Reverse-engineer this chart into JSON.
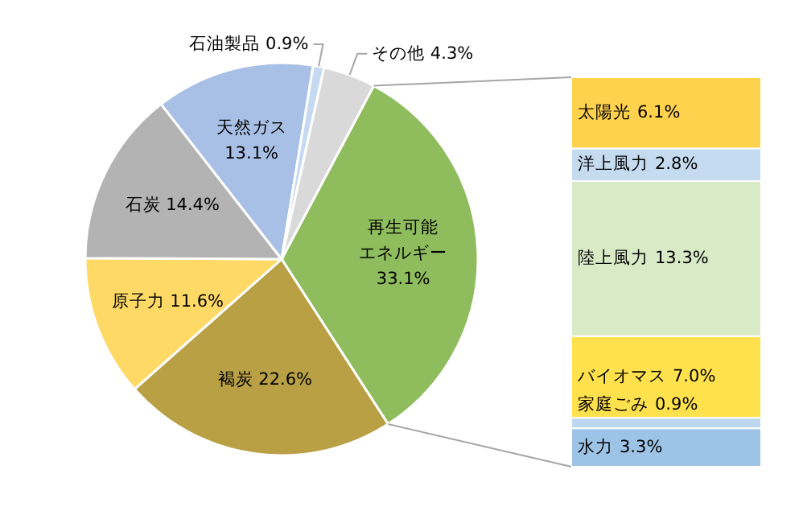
{
  "chart_data": [
    {
      "type": "pie",
      "categories": [
        "再生可能エネルギー",
        "褐炭",
        "原子力",
        "石炭",
        "天然ガス",
        "石油製品",
        "その他"
      ],
      "values": [
        33.1,
        22.6,
        11.6,
        14.4,
        13.1,
        0.9,
        4.3
      ],
      "colors": [
        "#8fbc5c",
        "#b9a045",
        "#ffd966",
        "#b3b3b3",
        "#a9c0e6",
        "#c5d9f0",
        "#d9d9d9"
      ],
      "value_labels": [
        "33.1%",
        "22.6%",
        "11.6%",
        "14.4%",
        "13.1%",
        "0.9%",
        "4.3%"
      ]
    },
    {
      "type": "bar",
      "stacked": true,
      "categories": [
        null
      ],
      "series": [
        {
          "name": "水力",
          "color": "#9dc3e6",
          "values": [
            3.3
          ],
          "value_labels": [
            "3.3%"
          ]
        },
        {
          "name": "家庭ごみ",
          "color": "#bdd7ee",
          "values": [
            0.9
          ],
          "value_labels": [
            "0.9%"
          ]
        },
        {
          "name": "バイオマス",
          "color": "#ffe14d",
          "values": [
            7.0
          ],
          "value_labels": [
            "7.0%"
          ]
        },
        {
          "name": "陸上風力",
          "color": "#d8eac6",
          "values": [
            13.3
          ],
          "value_labels": [
            "13.3%"
          ]
        },
        {
          "name": "洋上風力",
          "color": "#c5dcf0",
          "values": [
            2.8
          ],
          "value_labels": [
            "2.8%"
          ]
        },
        {
          "name": "太陽光",
          "color": "#ffd24d",
          "values": [
            6.1
          ],
          "value_labels": [
            "6.1%"
          ]
        }
      ]
    }
  ]
}
